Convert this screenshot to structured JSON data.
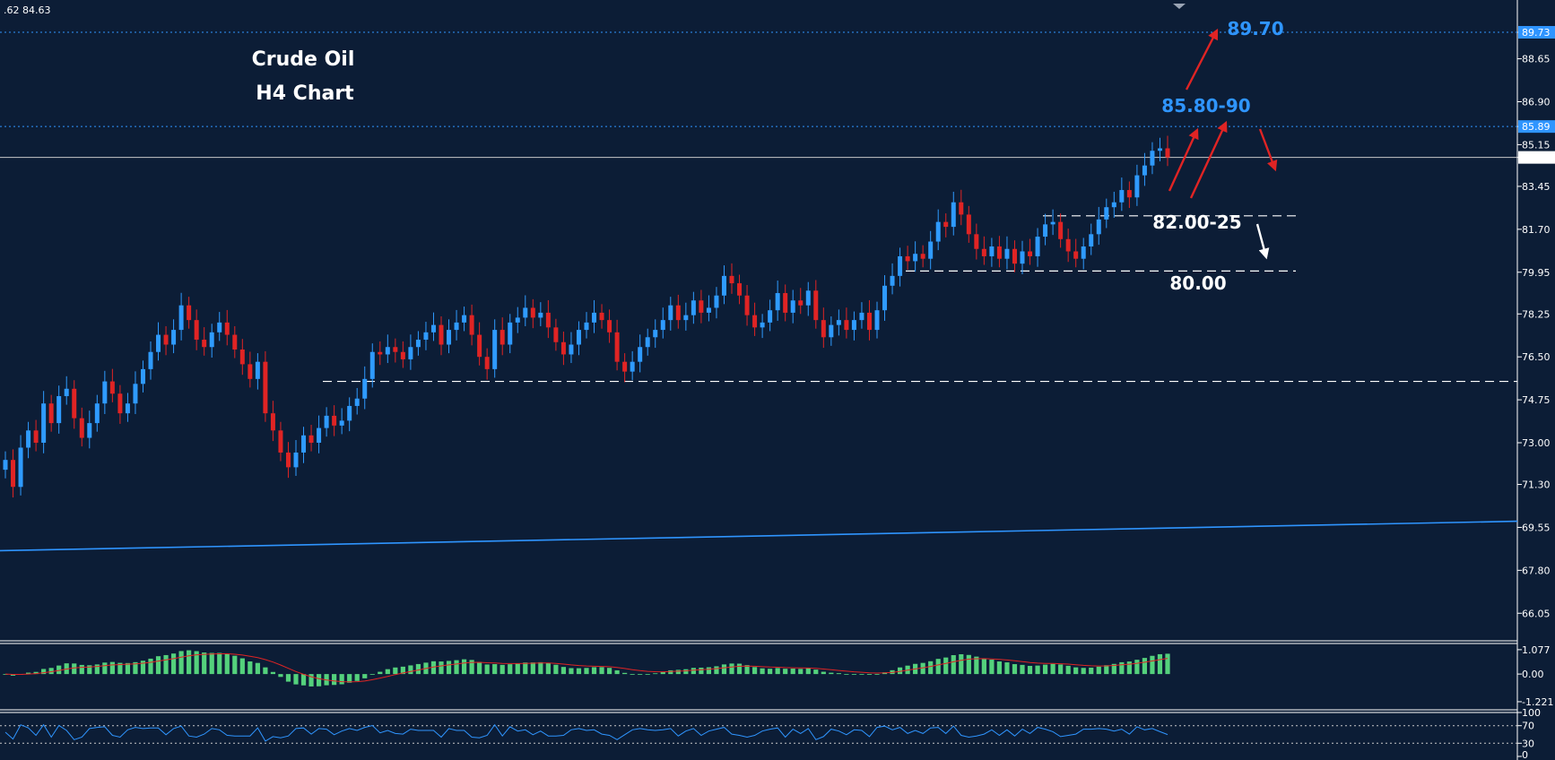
{
  "chart_data": {
    "type": "candlestick",
    "title": "Crude Oil",
    "subtitle": "H4 Chart",
    "ohlc_readout": ".62 84.63",
    "colors": {
      "background": "#0c1d36",
      "up": "#2f9bff",
      "down": "#e02424",
      "ma_line": "#2f95ff",
      "macd_hist": "#54d17c",
      "macd_signal": "#e02424",
      "rsi": "#2f95ff",
      "annotation_blue": "#2f95ff",
      "arrow_red": "#e02424"
    },
    "price_axis": {
      "ylim": [
        65.0,
        90.9
      ],
      "ticks": [
        "89.73",
        "88.65",
        "86.90",
        "85.89",
        "85.15",
        "84.63",
        "83.45",
        "81.70",
        "79.95",
        "78.25",
        "76.50",
        "74.75",
        "73.00",
        "71.30",
        "69.55",
        "67.80",
        "66.05"
      ],
      "markers": [
        {
          "label": "89.73",
          "value": 89.73,
          "bg": "#2f95ff"
        },
        {
          "label": "85.89",
          "value": 85.89,
          "bg": "#2f95ff"
        },
        {
          "label": "84.63",
          "value": 84.63,
          "bg": "#ffffff"
        }
      ]
    },
    "closes": [
      72.3,
      71.2,
      72.8,
      73.5,
      73.0,
      74.6,
      73.8,
      74.9,
      75.2,
      74.0,
      73.2,
      73.8,
      74.6,
      75.5,
      75.0,
      74.2,
      74.6,
      75.4,
      76.0,
      76.7,
      77.4,
      77.0,
      77.6,
      78.6,
      78.0,
      77.2,
      76.9,
      77.5,
      77.9,
      77.4,
      76.8,
      76.2,
      75.6,
      76.3,
      74.2,
      73.5,
      72.6,
      72.0,
      72.6,
      73.3,
      73.0,
      73.6,
      74.1,
      73.7,
      73.9,
      74.5,
      74.8,
      75.6,
      76.7,
      76.6,
      76.9,
      76.7,
      76.4,
      76.9,
      77.2,
      77.5,
      77.8,
      77.0,
      77.6,
      77.9,
      78.2,
      77.4,
      76.5,
      76.0,
      77.6,
      77.0,
      77.9,
      78.1,
      78.5,
      78.1,
      78.3,
      77.7,
      77.1,
      76.6,
      77.0,
      77.6,
      77.9,
      78.3,
      78.0,
      77.5,
      76.3,
      75.9,
      76.3,
      76.9,
      77.3,
      77.6,
      78.0,
      78.6,
      78.0,
      78.2,
      78.8,
      78.3,
      78.5,
      79.0,
      79.8,
      79.5,
      79.0,
      78.2,
      77.7,
      77.9,
      78.4,
      79.1,
      78.3,
      78.8,
      78.6,
      79.2,
      78.0,
      77.3,
      77.8,
      78.0,
      77.6,
      78.0,
      78.3,
      77.6,
      78.4,
      79.4,
      79.8,
      80.6,
      80.4,
      80.7,
      80.5,
      81.2,
      82.0,
      81.8,
      82.8,
      82.3,
      81.5,
      80.9,
      80.6,
      81.0,
      80.5,
      80.9,
      80.3,
      80.8,
      80.6,
      81.4,
      81.9,
      82.0,
      81.3,
      80.8,
      80.5,
      81.0,
      81.5,
      82.1,
      82.6,
      82.8,
      83.3,
      83.0,
      83.9,
      84.3,
      84.9,
      85.0,
      84.63
    ],
    "macd": {
      "ylim": [
        -1.5,
        1.35
      ],
      "ticks": [
        "1.077",
        "0.00",
        "-1.221"
      ]
    },
    "rsi": {
      "ylim": [
        0,
        100
      ],
      "ticks": [
        "100",
        "70",
        "30",
        "0"
      ],
      "levels": [
        70,
        30
      ]
    },
    "annotations": [
      {
        "label": "89.70",
        "color": "blue",
        "anchor_price": 89.7
      },
      {
        "label": "85.80-90",
        "color": "blue",
        "anchor_price": 85.85
      },
      {
        "label": "82.00-25",
        "color": "white",
        "anchor_price": 82.1
      },
      {
        "label": "80.00",
        "color": "white",
        "anchor_price": 80.0
      }
    ],
    "levels": [
      89.73,
      85.89,
      84.63,
      82.25,
      80.0,
      75.5
    ],
    "moving_average": {
      "start": 68.6,
      "end": 69.8
    }
  }
}
